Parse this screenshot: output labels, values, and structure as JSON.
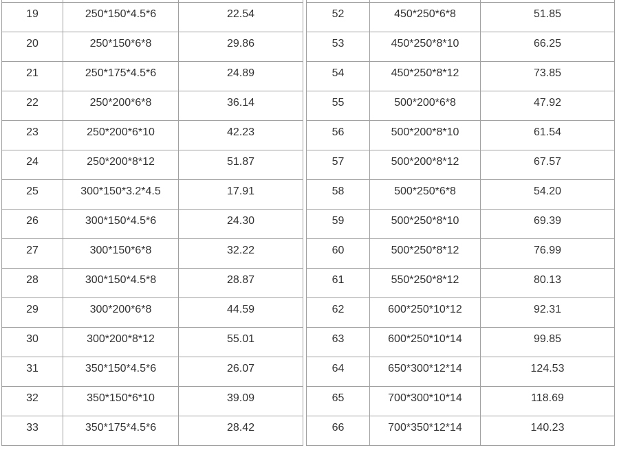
{
  "page": {
    "background_color": "#ffffff",
    "grid_color": "#a0a0a0",
    "text_color": "#333333",
    "description": "Cropped two-panel table of section specifications and unit weights"
  },
  "tables": [
    {
      "name": "left-panel",
      "rows": [
        {
          "no": "19",
          "spec": "250*150*4.5*6",
          "weight": "22.54"
        },
        {
          "no": "20",
          "spec": "250*150*6*8",
          "weight": "29.86"
        },
        {
          "no": "21",
          "spec": "250*175*4.5*6",
          "weight": "24.89"
        },
        {
          "no": "22",
          "spec": "250*200*6*8",
          "weight": "36.14"
        },
        {
          "no": "23",
          "spec": "250*200*6*10",
          "weight": "42.23"
        },
        {
          "no": "24",
          "spec": "250*200*8*12",
          "weight": "51.87"
        },
        {
          "no": "25",
          "spec": "300*150*3.2*4.5",
          "weight": "17.91"
        },
        {
          "no": "26",
          "spec": "300*150*4.5*6",
          "weight": "24.30"
        },
        {
          "no": "27",
          "spec": "300*150*6*8",
          "weight": "32.22"
        },
        {
          "no": "28",
          "spec": "300*150*4.5*8",
          "weight": "28.87"
        },
        {
          "no": "29",
          "spec": "300*200*6*8",
          "weight": "44.59"
        },
        {
          "no": "30",
          "spec": "300*200*8*12",
          "weight": "55.01"
        },
        {
          "no": "31",
          "spec": "350*150*4.5*6",
          "weight": "26.07"
        },
        {
          "no": "32",
          "spec": "350*150*6*10",
          "weight": "39.09"
        },
        {
          "no": "33",
          "spec": "350*175*4.5*6",
          "weight": "28.42"
        }
      ]
    },
    {
      "name": "right-panel",
      "rows": [
        {
          "no": "52",
          "spec": "450*250*6*8",
          "weight": "51.85"
        },
        {
          "no": "53",
          "spec": "450*250*8*10",
          "weight": "66.25"
        },
        {
          "no": "54",
          "spec": "450*250*8*12",
          "weight": "73.85"
        },
        {
          "no": "55",
          "spec": "500*200*6*8",
          "weight": "47.92"
        },
        {
          "no": "56",
          "spec": "500*200*8*10",
          "weight": "61.54"
        },
        {
          "no": "57",
          "spec": "500*200*8*12",
          "weight": "67.57"
        },
        {
          "no": "58",
          "spec": "500*250*6*8",
          "weight": "54.20"
        },
        {
          "no": "59",
          "spec": "500*250*8*10",
          "weight": "69.39"
        },
        {
          "no": "60",
          "spec": "500*250*8*12",
          "weight": "76.99"
        },
        {
          "no": "61",
          "spec": "550*250*8*12",
          "weight": "80.13"
        },
        {
          "no": "62",
          "spec": "600*250*10*12",
          "weight": "92.31"
        },
        {
          "no": "63",
          "spec": "600*250*10*14",
          "weight": "99.85"
        },
        {
          "no": "64",
          "spec": "650*300*12*14",
          "weight": "124.53"
        },
        {
          "no": "65",
          "spec": "700*300*10*14",
          "weight": "118.69"
        },
        {
          "no": "66",
          "spec": "700*350*12*14",
          "weight": "140.23"
        }
      ]
    }
  ]
}
